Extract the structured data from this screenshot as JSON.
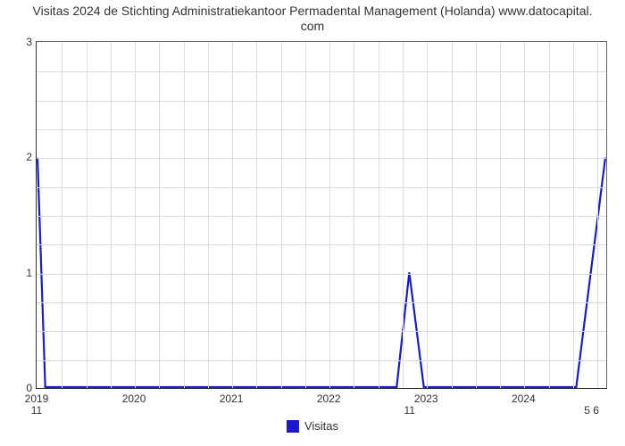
{
  "chart": {
    "type": "line",
    "title_line1": "Visitas 2024 de Stichting Administratiekantoor Permadental Management (Holanda) www.datocapital.",
    "title_line2": "com",
    "title_fontsize": 14,
    "title_color": "#333333",
    "background_color": "#ffffff",
    "plot_border_color": "#666666",
    "axis_color": "#333333",
    "grid_color": "#dcdcdc",
    "line_color": "#1a1acc",
    "line_width": 2.2,
    "x": {
      "min": 2019,
      "max": 2024.85,
      "ticks": [
        2019,
        2020,
        2021,
        2022,
        2023,
        2024
      ],
      "tick_labels": [
        "2019",
        "2020",
        "2021",
        "2022",
        "2023",
        "2024"
      ],
      "tick_fontsize": 12
    },
    "y": {
      "min": 0,
      "max": 3,
      "ticks": [
        0,
        1,
        2,
        3
      ],
      "tick_labels": [
        "0",
        "1",
        "2",
        "3"
      ],
      "tick_fontsize": 12
    },
    "minor_grid_per_major_x": 4,
    "minor_grid_per_major_y": 4,
    "series": {
      "name": "Visitas",
      "points": [
        {
          "x": 2019.0,
          "y": 2.0
        },
        {
          "x": 2019.08,
          "y": 0.0
        },
        {
          "x": 2022.7,
          "y": 0.0
        },
        {
          "x": 2022.83,
          "y": 1.0
        },
        {
          "x": 2022.98,
          "y": 0.0
        },
        {
          "x": 2024.55,
          "y": 0.0
        },
        {
          "x": 2024.85,
          "y": 2.0
        }
      ]
    },
    "data_labels": [
      {
        "x": 2019.0,
        "y": 0.0,
        "text": "11",
        "dy": 18
      },
      {
        "x": 2022.83,
        "y": 0.0,
        "text": "11",
        "dy": 18
      },
      {
        "x": 2024.7,
        "y": 0.0,
        "text": "5 6",
        "dy": 18
      }
    ],
    "legend": {
      "label": "Visitas",
      "swatch_color": "#1a1acc",
      "fontsize": 13
    }
  }
}
